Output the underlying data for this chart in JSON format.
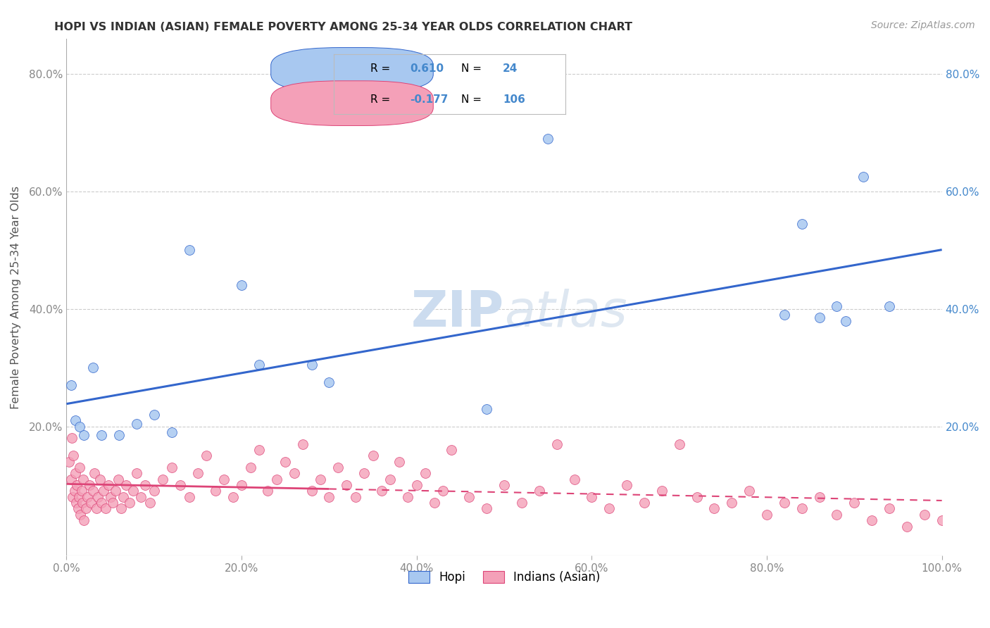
{
  "title": "HOPI VS INDIAN (ASIAN) FEMALE POVERTY AMONG 25-34 YEAR OLDS CORRELATION CHART",
  "source": "Source: ZipAtlas.com",
  "ylabel": "Female Poverty Among 25-34 Year Olds",
  "xlim": [
    0.0,
    1.0
  ],
  "ylim": [
    -0.02,
    0.86
  ],
  "xtick_labels": [
    "0.0%",
    "",
    "",
    "",
    "",
    "",
    "20.0%",
    "",
    "",
    "",
    "",
    "",
    "40.0%",
    "",
    "",
    "",
    "",
    "",
    "60.0%",
    "",
    "",
    "",
    "",
    "",
    "80.0%",
    "",
    "",
    "",
    "",
    "",
    "100.0%"
  ],
  "xtick_vals": [
    0.0,
    0.2,
    0.4,
    0.6,
    0.8,
    1.0
  ],
  "xtick_display": [
    "0.0%",
    "20.0%",
    "40.0%",
    "60.0%",
    "80.0%",
    "100.0%"
  ],
  "ytick_labels": [
    "20.0%",
    "40.0%",
    "60.0%",
    "80.0%"
  ],
  "ytick_vals": [
    0.2,
    0.4,
    0.6,
    0.8
  ],
  "hopi_color": "#A8C8F0",
  "indian_color": "#F4A0B8",
  "hopi_R": 0.61,
  "hopi_N": 24,
  "indian_R": -0.177,
  "indian_N": 106,
  "hopi_x": [
    0.005,
    0.01,
    0.015,
    0.02,
    0.03,
    0.04,
    0.06,
    0.08,
    0.1,
    0.12,
    0.14,
    0.2,
    0.22,
    0.28,
    0.3,
    0.48,
    0.55,
    0.82,
    0.84,
    0.86,
    0.88,
    0.89,
    0.91,
    0.94
  ],
  "hopi_y": [
    0.27,
    0.21,
    0.2,
    0.185,
    0.3,
    0.185,
    0.185,
    0.205,
    0.22,
    0.19,
    0.5,
    0.44,
    0.305,
    0.305,
    0.275,
    0.23,
    0.69,
    0.39,
    0.545,
    0.385,
    0.405,
    0.38,
    0.625,
    0.405
  ],
  "indian_x": [
    0.003,
    0.005,
    0.006,
    0.007,
    0.008,
    0.009,
    0.01,
    0.011,
    0.012,
    0.013,
    0.014,
    0.015,
    0.016,
    0.017,
    0.018,
    0.019,
    0.02,
    0.022,
    0.024,
    0.026,
    0.028,
    0.03,
    0.032,
    0.034,
    0.036,
    0.038,
    0.04,
    0.042,
    0.045,
    0.048,
    0.05,
    0.053,
    0.056,
    0.059,
    0.062,
    0.065,
    0.068,
    0.072,
    0.076,
    0.08,
    0.085,
    0.09,
    0.095,
    0.1,
    0.11,
    0.12,
    0.13,
    0.14,
    0.15,
    0.16,
    0.17,
    0.18,
    0.19,
    0.2,
    0.21,
    0.22,
    0.23,
    0.24,
    0.25,
    0.26,
    0.27,
    0.28,
    0.29,
    0.3,
    0.31,
    0.32,
    0.33,
    0.34,
    0.35,
    0.36,
    0.37,
    0.38,
    0.39,
    0.4,
    0.41,
    0.42,
    0.43,
    0.44,
    0.46,
    0.48,
    0.5,
    0.52,
    0.54,
    0.56,
    0.58,
    0.6,
    0.62,
    0.64,
    0.66,
    0.68,
    0.7,
    0.72,
    0.74,
    0.76,
    0.78,
    0.8,
    0.82,
    0.84,
    0.86,
    0.88,
    0.9,
    0.92,
    0.94,
    0.96,
    0.98,
    1.0
  ],
  "indian_y": [
    0.14,
    0.11,
    0.18,
    0.08,
    0.15,
    0.09,
    0.12,
    0.07,
    0.1,
    0.06,
    0.08,
    0.13,
    0.05,
    0.09,
    0.07,
    0.11,
    0.04,
    0.06,
    0.08,
    0.1,
    0.07,
    0.09,
    0.12,
    0.06,
    0.08,
    0.11,
    0.07,
    0.09,
    0.06,
    0.1,
    0.08,
    0.07,
    0.09,
    0.11,
    0.06,
    0.08,
    0.1,
    0.07,
    0.09,
    0.12,
    0.08,
    0.1,
    0.07,
    0.09,
    0.11,
    0.13,
    0.1,
    0.08,
    0.12,
    0.15,
    0.09,
    0.11,
    0.08,
    0.1,
    0.13,
    0.16,
    0.09,
    0.11,
    0.14,
    0.12,
    0.17,
    0.09,
    0.11,
    0.08,
    0.13,
    0.1,
    0.08,
    0.12,
    0.15,
    0.09,
    0.11,
    0.14,
    0.08,
    0.1,
    0.12,
    0.07,
    0.09,
    0.16,
    0.08,
    0.06,
    0.1,
    0.07,
    0.09,
    0.17,
    0.11,
    0.08,
    0.06,
    0.1,
    0.07,
    0.09,
    0.17,
    0.08,
    0.06,
    0.07,
    0.09,
    0.05,
    0.07,
    0.06,
    0.08,
    0.05,
    0.07,
    0.04,
    0.06,
    0.03,
    0.05,
    0.04
  ],
  "background_color": "#ffffff",
  "grid_color": "#cccccc",
  "title_color": "#333333",
  "axis_label_color": "#555555",
  "tick_color_left": "#888888",
  "tick_color_right": "#4488CC",
  "hopi_line_color": "#3366CC",
  "indian_line_color": "#DD4477",
  "watermark_color": "#d0dff0",
  "stats_box_edge": "#bbbbbb"
}
